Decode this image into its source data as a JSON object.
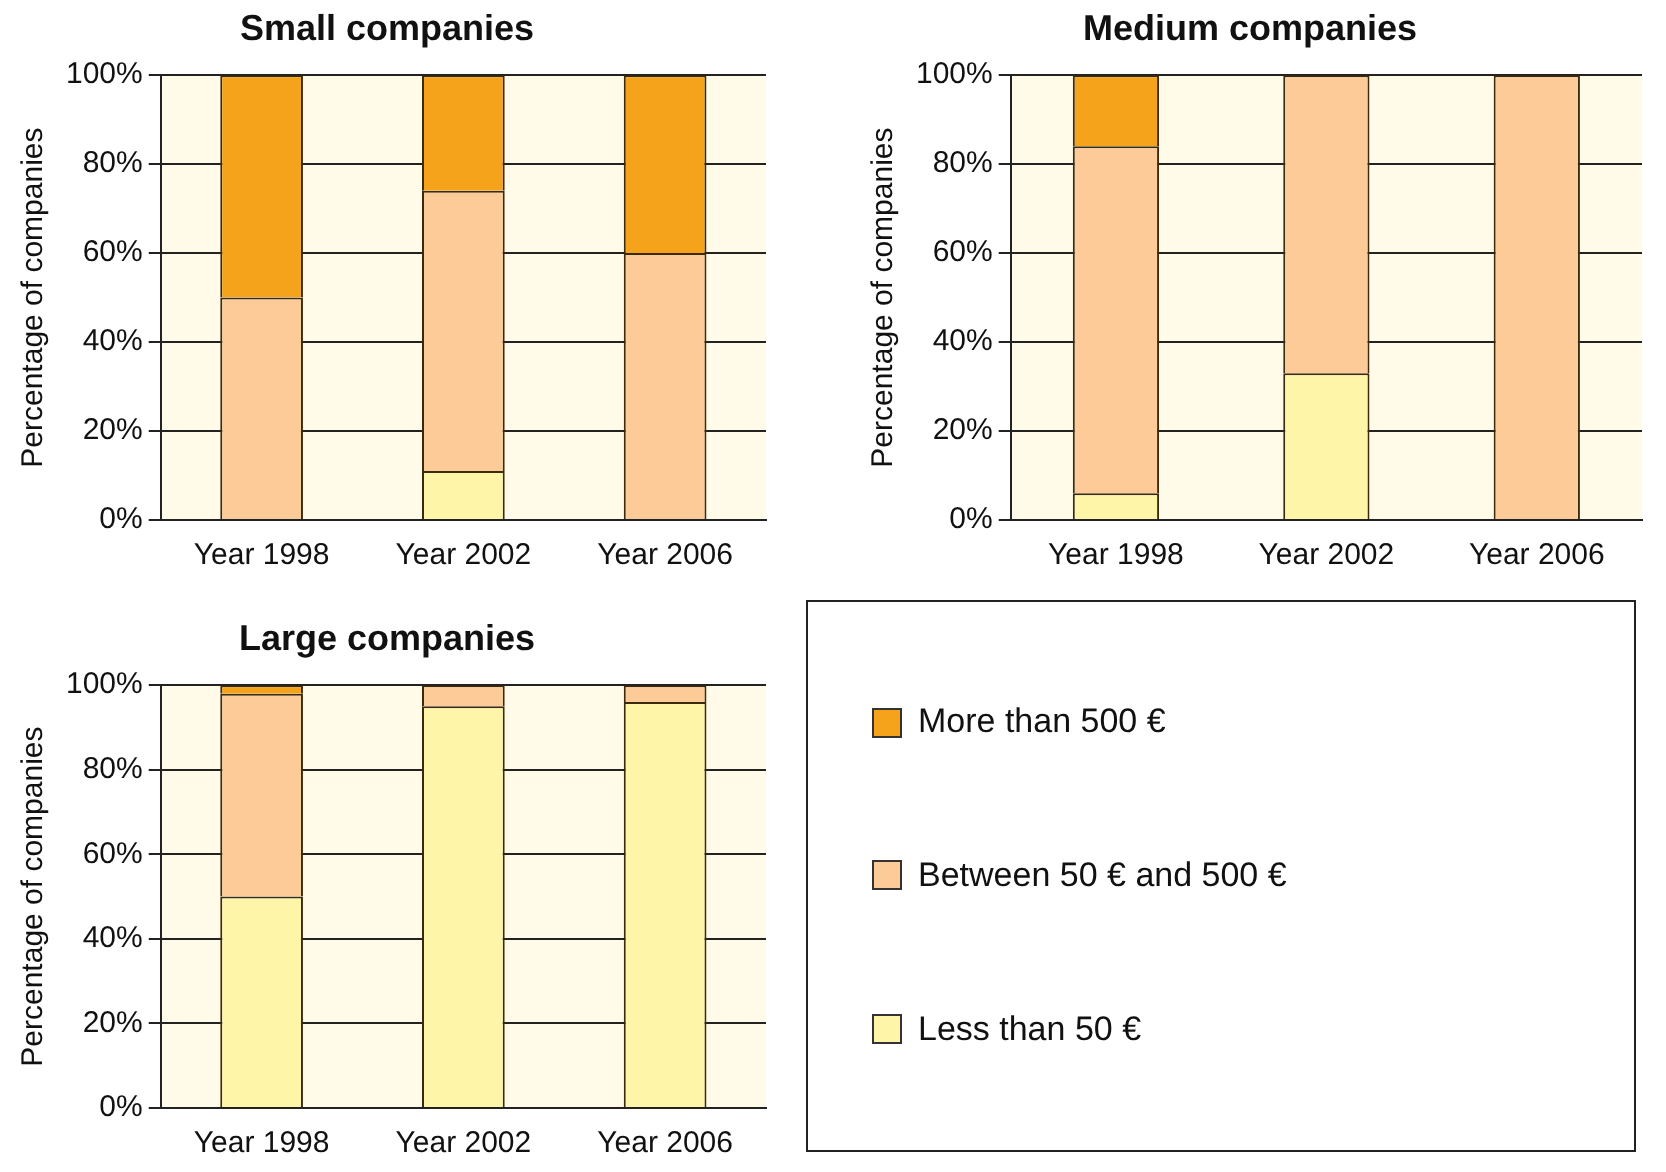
{
  "chart_data": [
    {
      "type": "bar",
      "title": "Small companies",
      "ylabel": "Percentage of companies",
      "categories": [
        "Year 1998",
        "Year 2002",
        "Year 2006"
      ],
      "stacked": true,
      "grid": "y",
      "legend": false,
      "ylim": [
        0,
        100
      ],
      "yticks": [
        {
          "value": 0,
          "label": "0%"
        },
        {
          "value": 20,
          "label": "20%"
        },
        {
          "value": 40,
          "label": "40%"
        },
        {
          "value": 60,
          "label": "60%"
        },
        {
          "value": 80,
          "label": "80%"
        },
        {
          "value": 100,
          "label": "100%"
        }
      ],
      "series": [
        {
          "color": "#fff5a8",
          "values": [
            0,
            11,
            0
          ]
        },
        {
          "color": "#fccb98",
          "values": [
            50,
            63,
            60
          ]
        },
        {
          "color": "#f5a31a",
          "values": [
            50,
            26,
            40
          ]
        }
      ]
    },
    {
      "type": "bar",
      "title": "Medium companies",
      "ylabel": "Percentage of companies",
      "categories": [
        "Year 1998",
        "Year 2002",
        "Year 2006"
      ],
      "stacked": true,
      "grid": "y",
      "legend": false,
      "ylim": [
        0,
        100
      ],
      "yticks": [
        {
          "value": 0,
          "label": "0%"
        },
        {
          "value": 20,
          "label": "20%"
        },
        {
          "value": 40,
          "label": "40%"
        },
        {
          "value": 60,
          "label": "60%"
        },
        {
          "value": 80,
          "label": "80%"
        },
        {
          "value": 100,
          "label": "100%"
        }
      ],
      "series": [
        {
          "color": "#fff5a8",
          "values": [
            6,
            33,
            0
          ]
        },
        {
          "color": "#fccb98",
          "values": [
            78,
            67,
            100
          ]
        },
        {
          "color": "#f5a31a",
          "values": [
            16,
            0,
            0
          ]
        }
      ]
    },
    {
      "type": "bar",
      "title": "Large companies",
      "ylabel": "Percentage of companies",
      "categories": [
        "Year 1998",
        "Year 2002",
        "Year 2006"
      ],
      "stacked": true,
      "grid": "y",
      "legend": "right",
      "ylim": [
        0,
        100
      ],
      "yticks": [
        {
          "value": 0,
          "label": "0%"
        },
        {
          "value": 20,
          "label": "20%"
        },
        {
          "value": 40,
          "label": "40%"
        },
        {
          "value": 60,
          "label": "60%"
        },
        {
          "value": 80,
          "label": "80%"
        },
        {
          "value": 100,
          "label": "100%"
        }
      ],
      "series": [
        {
          "name": "Less than 50 €",
          "color": "#fff5a8",
          "values": [
            50,
            95,
            96
          ]
        },
        {
          "name": "Between 50 € and 500 €",
          "color": "#fccb98",
          "values": [
            48,
            5,
            4
          ]
        },
        {
          "name": "More than 500 €",
          "color": "#f5a31a",
          "values": [
            2,
            0,
            0
          ]
        }
      ]
    }
  ]
}
